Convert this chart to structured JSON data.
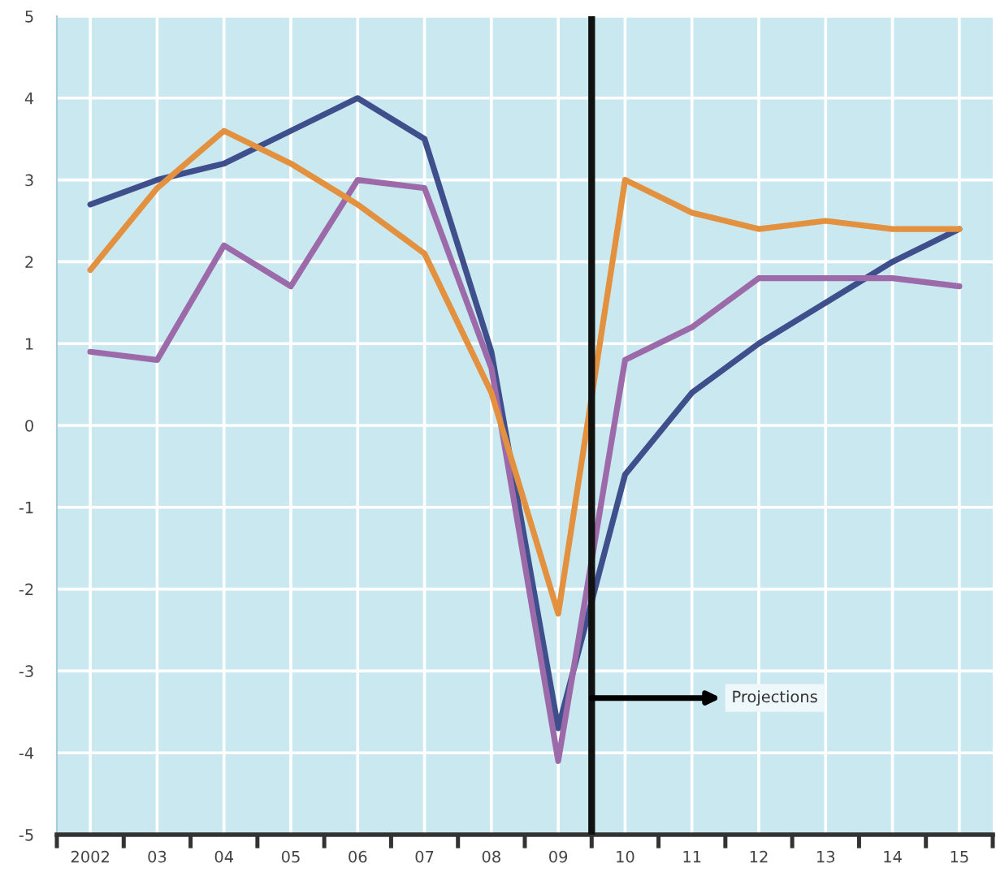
{
  "chart_data": {
    "type": "line",
    "x": [
      2002,
      2003,
      2004,
      2005,
      2006,
      2007,
      2008,
      2009,
      2010,
      2011,
      2012,
      2013,
      2014,
      2015
    ],
    "xlim": [
      2001.5,
      2015.5
    ],
    "xticks": [
      {
        "value": 2001.5,
        "label": null
      },
      {
        "value": 2002,
        "label": "2002"
      },
      {
        "value": 2002.5,
        "label": null
      },
      {
        "value": 2003,
        "label": "03"
      },
      {
        "value": 2003.5,
        "label": null
      },
      {
        "value": 2004,
        "label": "04"
      },
      {
        "value": 2004.5,
        "label": null
      },
      {
        "value": 2005,
        "label": "05"
      },
      {
        "value": 2005.5,
        "label": null
      },
      {
        "value": 2006,
        "label": "06"
      },
      {
        "value": 2006.5,
        "label": null
      },
      {
        "value": 2007,
        "label": "07"
      },
      {
        "value": 2007.5,
        "label": null
      },
      {
        "value": 2008,
        "label": "08"
      },
      {
        "value": 2008.5,
        "label": null
      },
      {
        "value": 2009,
        "label": "09"
      },
      {
        "value": 2009.5,
        "label": null
      },
      {
        "value": 2010,
        "label": "10"
      },
      {
        "value": 2010.5,
        "label": null
      },
      {
        "value": 2011,
        "label": "11"
      },
      {
        "value": 2011.5,
        "label": null
      },
      {
        "value": 2012,
        "label": "12"
      },
      {
        "value": 2012.5,
        "label": null
      },
      {
        "value": 2013,
        "label": "13"
      },
      {
        "value": 2013.5,
        "label": null
      },
      {
        "value": 2014,
        "label": "14"
      },
      {
        "value": 2014.5,
        "label": null
      },
      {
        "value": 2015,
        "label": "15"
      },
      {
        "value": 2015.5,
        "label": null
      }
    ],
    "ylim": [
      -5,
      5
    ],
    "yticks": [
      -5,
      -4,
      -3,
      -2,
      -1,
      0,
      1,
      2,
      3,
      4,
      5
    ],
    "series": [
      {
        "color": "#3f4f8c",
        "values": [
          2.7,
          3.0,
          3.2,
          3.6,
          4.0,
          3.5,
          0.9,
          -3.7,
          -0.6,
          0.4,
          1.0,
          1.5,
          2.0,
          2.4
        ]
      },
      {
        "color": "#9c6aa8",
        "values": [
          0.9,
          0.8,
          2.2,
          1.7,
          3.0,
          2.9,
          0.7,
          -4.1,
          0.8,
          1.2,
          1.8,
          1.8,
          1.8,
          1.7
        ]
      },
      {
        "color": "#e3903f",
        "values": [
          1.9,
          2.9,
          3.6,
          3.2,
          2.7,
          2.1,
          0.4,
          -2.3,
          3.0,
          2.6,
          2.4,
          2.5,
          2.4,
          2.4
        ]
      }
    ],
    "ref_lines": [
      {
        "axis": "x",
        "value": 2009.5,
        "label": "Projections",
        "color": "#111111"
      }
    ],
    "grid": true
  }
}
